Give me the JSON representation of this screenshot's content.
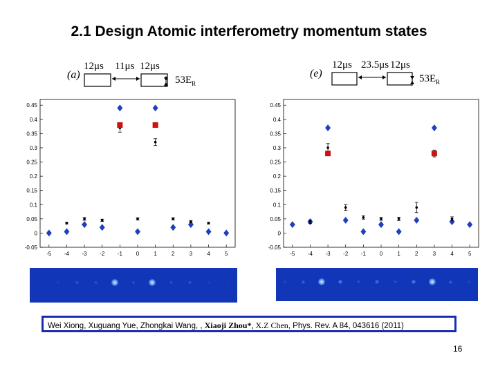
{
  "slide": {
    "title": "2.1  Design Atomic interferometry momentum states",
    "page_number": "16",
    "citation": {
      "authors_plain": "Wei Xiong, Xuguang Yue, Zhongkai Wang, ,",
      "author_bold": "Xiaoji Zhou*",
      "author_serif": ", X.Z Chen",
      "reference": ", Phys. Rev. A 84, 043616 (2011)"
    }
  },
  "panels": {
    "a": {
      "label": "(a)",
      "pulse1": "12μs",
      "gap": "11μs",
      "pulse2": "12μs",
      "energy": "53E",
      "energy_sub": "R"
    },
    "e": {
      "label": "(e)",
      "pulse1": "12μs",
      "gap": "23.5μs",
      "pulse2": "12μs",
      "energy": "53E",
      "energy_sub": "R"
    }
  },
  "colors": {
    "theory": "#1f3fbf",
    "experiment": "#000000",
    "highlight": "#cc1111",
    "border": "#1a2db0",
    "strip_bg": "#1236b8"
  },
  "chart_data": [
    {
      "type": "scatter",
      "title": "",
      "xlim": [
        -5.5,
        5.5
      ],
      "ylim": [
        -0.05,
        0.47
      ],
      "x_ticks": [
        "-5",
        "-4",
        "-3",
        "-2",
        "-1",
        "0",
        "1",
        "2",
        "3",
        "4",
        "5"
      ],
      "y_ticks": [
        "-0.05",
        "0",
        "0.05",
        "0.1",
        "0.15",
        "0.2",
        "0.25",
        "0.3",
        "0.35",
        "0.4",
        "0.45"
      ],
      "series": [
        {
          "marker": "diamond",
          "color": "#1f3fbf",
          "x": [
            -5,
            -4,
            -3,
            -2,
            -1,
            0,
            1,
            2,
            3,
            4,
            5
          ],
          "y": [
            0.0,
            0.005,
            0.03,
            0.02,
            0.44,
            0.005,
            0.44,
            0.02,
            0.03,
            0.005,
            0.0
          ]
        },
        {
          "marker": "dot-errorbar",
          "color": "#000000",
          "x": [
            -4,
            -3,
            -2,
            -1,
            0,
            1,
            2,
            3,
            4
          ],
          "y": [
            0.035,
            0.05,
            0.045,
            0.37,
            0.05,
            0.32,
            0.05,
            0.04,
            0.035
          ],
          "err": [
            0.003,
            0.005,
            0.004,
            0.015,
            0.004,
            0.012,
            0.004,
            0.004,
            0.003
          ]
        },
        {
          "marker": "square",
          "color": "#cc1111",
          "x": [
            -1,
            1
          ],
          "y": [
            0.38,
            0.38
          ]
        }
      ]
    },
    {
      "type": "scatter",
      "title": "",
      "xlim": [
        -5.5,
        5.5
      ],
      "ylim": [
        -0.05,
        0.47
      ],
      "x_ticks": [
        "-5",
        "-4",
        "-3",
        "-2",
        "-1",
        "0",
        "1",
        "2",
        "3",
        "4",
        "5"
      ],
      "y_ticks": [
        "-0.05",
        "0",
        "0.05",
        "0.1",
        "0.15",
        "0.2",
        "0.25",
        "0.3",
        "0.35",
        "0.4",
        "0.45"
      ],
      "series": [
        {
          "marker": "diamond",
          "color": "#1f3fbf",
          "x": [
            -5,
            -4,
            -3,
            -2,
            -1,
            0,
            1,
            2,
            3,
            4,
            5
          ],
          "y": [
            0.03,
            0.04,
            0.37,
            0.045,
            0.005,
            0.03,
            0.005,
            0.045,
            0.37,
            0.04,
            0.03
          ]
        },
        {
          "marker": "dot-errorbar",
          "color": "#000000",
          "x": [
            -4,
            -3,
            -2,
            -1,
            0,
            1,
            2,
            3,
            4
          ],
          "y": [
            0.04,
            0.3,
            0.09,
            0.055,
            0.05,
            0.05,
            0.09,
            0.28,
            0.05
          ],
          "err": [
            0.006,
            0.015,
            0.01,
            0.006,
            0.005,
            0.006,
            0.018,
            0.012,
            0.007
          ]
        },
        {
          "marker": "square",
          "color": "#cc1111",
          "x": [
            -3,
            3
          ],
          "y": [
            0.28,
            0.28
          ]
        }
      ]
    }
  ],
  "strips": [
    {
      "spot_positions": [
        -5,
        -4,
        -3,
        -2,
        -1,
        0,
        1,
        2,
        3,
        4,
        5
      ],
      "spot_intensity": [
        0.05,
        0.1,
        0.25,
        0.2,
        1.0,
        0.2,
        1.0,
        0.2,
        0.25,
        0.1,
        0.05
      ]
    },
    {
      "spot_positions": [
        -5,
        -4,
        -3,
        -2,
        -1,
        0,
        1,
        2,
        3,
        4,
        5
      ],
      "spot_intensity": [
        0.15,
        0.3,
        1.0,
        0.45,
        0.2,
        0.35,
        0.2,
        0.45,
        1.0,
        0.3,
        0.15
      ]
    }
  ]
}
